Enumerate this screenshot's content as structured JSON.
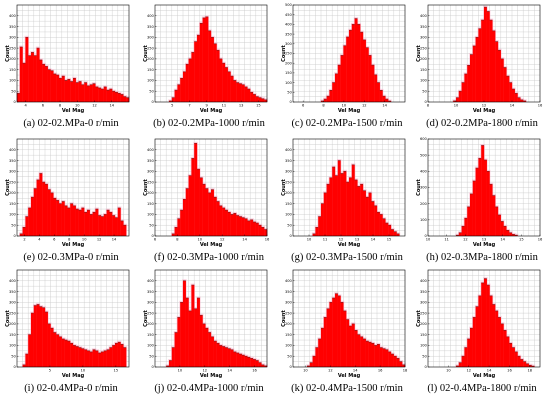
{
  "chart_data": [
    {
      "type": "bar",
      "caption": "(a) 02-02.MPa-0 r/min",
      "xlabel": "Vel Mag",
      "ylabel": "Count",
      "xlim": [
        3,
        16
      ],
      "ylim": [
        0,
        450
      ],
      "xticks": [
        4,
        6,
        8,
        10,
        12,
        14
      ],
      "yticks": [
        0,
        50,
        100,
        150,
        200,
        250,
        300,
        350,
        400
      ],
      "values": [
        40,
        255,
        180,
        300,
        215,
        230,
        215,
        250,
        195,
        175,
        165,
        150,
        145,
        130,
        125,
        110,
        120,
        100,
        105,
        95,
        110,
        90,
        95,
        80,
        90,
        75,
        80,
        85,
        70,
        65,
        60,
        70,
        55,
        60,
        50,
        45,
        40,
        35,
        25,
        20
      ]
    },
    {
      "type": "bar",
      "caption": "(b) 02-0.2MPa-1000 r/min",
      "xlabel": "Vel Mag",
      "ylabel": "Count",
      "xlim": [
        3,
        16
      ],
      "ylim": [
        0,
        450
      ],
      "xticks": [
        5,
        7,
        9,
        11,
        13,
        15
      ],
      "yticks": [
        0,
        50,
        100,
        150,
        200,
        250,
        300,
        350,
        400
      ],
      "values": [
        0,
        0,
        0,
        0,
        0,
        5,
        20,
        55,
        80,
        110,
        140,
        175,
        200,
        230,
        280,
        310,
        365,
        390,
        395,
        330,
        300,
        270,
        240,
        200,
        180,
        160,
        140,
        120,
        100,
        90,
        85,
        80,
        70,
        60,
        45,
        35,
        25,
        20,
        15,
        10
      ]
    },
    {
      "type": "bar",
      "caption": "(c) 02-0.2MPa-1500 r/min",
      "xlabel": "Vel Mag",
      "ylabel": "Count",
      "xlim": [
        5,
        16
      ],
      "ylim": [
        0,
        500
      ],
      "xticks": [
        6,
        8,
        10,
        12,
        14
      ],
      "yticks": [
        0,
        50,
        100,
        150,
        200,
        250,
        300,
        350,
        400,
        450,
        500
      ],
      "values": [
        0,
        0,
        0,
        0,
        0,
        0,
        0,
        0,
        0,
        0,
        5,
        15,
        30,
        60,
        100,
        145,
        190,
        240,
        290,
        335,
        370,
        400,
        430,
        400,
        360,
        320,
        280,
        240,
        190,
        140,
        100,
        60,
        30,
        15,
        5,
        0,
        0,
        0,
        0,
        0
      ]
    },
    {
      "type": "bar",
      "caption": "(d) 02-0.2MPa-1800 r/min",
      "xlabel": "Vel Mag",
      "ylabel": "Count",
      "xlim": [
        8,
        16
      ],
      "ylim": [
        0,
        450
      ],
      "xticks": [
        8,
        10,
        12,
        14,
        16
      ],
      "yticks": [
        0,
        50,
        100,
        150,
        200,
        250,
        300,
        350,
        400
      ],
      "values": [
        0,
        0,
        0,
        0,
        0,
        0,
        0,
        0,
        0,
        5,
        20,
        50,
        90,
        130,
        170,
        220,
        260,
        300,
        340,
        380,
        440,
        420,
        380,
        330,
        280,
        240,
        200,
        160,
        120,
        90,
        60,
        40,
        20,
        10,
        5,
        0,
        0,
        0,
        0,
        0
      ]
    },
    {
      "type": "bar",
      "caption": "(e) 02-0.3MPa-0 r/min",
      "xlabel": "Vel Mag",
      "ylabel": "Count",
      "xlim": [
        1,
        16
      ],
      "ylim": [
        0,
        450
      ],
      "xticks": [
        2,
        4,
        6,
        8,
        10,
        12,
        14
      ],
      "yticks": [
        0,
        50,
        100,
        150,
        200,
        250,
        300,
        350,
        400
      ],
      "values": [
        0,
        10,
        40,
        90,
        130,
        180,
        220,
        260,
        290,
        250,
        240,
        215,
        200,
        175,
        165,
        150,
        160,
        140,
        130,
        150,
        140,
        125,
        120,
        130,
        110,
        120,
        100,
        110,
        125,
        95,
        90,
        100,
        120,
        110,
        95,
        85,
        130,
        70,
        50,
        0
      ]
    },
    {
      "type": "bar",
      "caption": "(f) 02-0.3MPa-1000 r/min",
      "xlabel": "Vel Mag",
      "ylabel": "Count",
      "xlim": [
        6,
        16
      ],
      "ylim": [
        0,
        450
      ],
      "xticks": [
        6,
        8,
        10,
        12,
        14,
        16
      ],
      "yticks": [
        0,
        50,
        100,
        150,
        200,
        250,
        300,
        350,
        400
      ],
      "values": [
        0,
        0,
        0,
        0,
        0,
        0,
        10,
        40,
        80,
        120,
        170,
        220,
        280,
        360,
        430,
        310,
        270,
        240,
        220,
        200,
        215,
        180,
        160,
        140,
        130,
        120,
        110,
        100,
        105,
        95,
        90,
        85,
        80,
        70,
        75,
        65,
        60,
        50,
        40,
        30
      ]
    },
    {
      "type": "bar",
      "caption": "(g) 02-0.3MPa-1500 r/min",
      "xlabel": "Vel Mag",
      "ylabel": "Count",
      "xlim": [
        9,
        16
      ],
      "ylim": [
        0,
        450
      ],
      "xticks": [
        10,
        11,
        12,
        13,
        14,
        15
      ],
      "yticks": [
        0,
        50,
        100,
        150,
        200,
        250,
        300,
        350,
        400
      ],
      "values": [
        0,
        0,
        0,
        0,
        0,
        0,
        0,
        10,
        40,
        90,
        150,
        200,
        240,
        270,
        320,
        280,
        350,
        290,
        300,
        250,
        270,
        330,
        260,
        230,
        240,
        210,
        180,
        200,
        160,
        140,
        110,
        100,
        80,
        60,
        50,
        30,
        20,
        10,
        0,
        0
      ]
    },
    {
      "type": "bar",
      "caption": "(h) 02-0.3MPa-1800 r/min",
      "xlabel": "Vel Mag",
      "ylabel": "Count",
      "xlim": [
        10,
        16
      ],
      "ylim": [
        0,
        600
      ],
      "xticks": [
        10,
        11,
        12,
        13,
        14,
        15,
        16
      ],
      "yticks": [
        0,
        100,
        200,
        300,
        400,
        500,
        600
      ],
      "values": [
        0,
        0,
        0,
        0,
        0,
        0,
        0,
        0,
        0,
        0,
        5,
        20,
        60,
        110,
        180,
        260,
        340,
        420,
        480,
        560,
        470,
        400,
        320,
        250,
        180,
        130,
        90,
        60,
        35,
        20,
        10,
        5,
        0,
        0,
        0,
        0,
        0,
        0,
        0,
        0
      ]
    },
    {
      "type": "bar",
      "caption": "(i) 02-0.4MPa-0 r/min",
      "xlabel": "Vel Mag",
      "ylabel": "Count",
      "xlim": [
        0,
        17
      ],
      "ylim": [
        0,
        450
      ],
      "xticks": [
        5,
        10,
        15
      ],
      "yticks": [
        0,
        50,
        100,
        150,
        200,
        250,
        300,
        350,
        400
      ],
      "values": [
        0,
        0,
        10,
        60,
        150,
        250,
        285,
        290,
        280,
        275,
        255,
        200,
        180,
        160,
        150,
        140,
        130,
        125,
        120,
        110,
        100,
        95,
        90,
        85,
        80,
        75,
        70,
        80,
        75,
        65,
        70,
        75,
        80,
        90,
        100,
        110,
        115,
        105,
        90,
        0
      ]
    },
    {
      "type": "bar",
      "caption": "(j) 02-0.4MPa-1000 r/min",
      "xlabel": "Vel Mag",
      "ylabel": "Count",
      "xlim": [
        8,
        17
      ],
      "ylim": [
        0,
        450
      ],
      "xticks": [
        10,
        12,
        14,
        16
      ],
      "yticks": [
        0,
        50,
        100,
        150,
        200,
        250,
        300,
        350,
        400
      ],
      "values": [
        0,
        0,
        0,
        0,
        5,
        30,
        90,
        160,
        230,
        300,
        400,
        320,
        260,
        380,
        270,
        320,
        240,
        200,
        180,
        160,
        140,
        120,
        110,
        100,
        95,
        90,
        85,
        80,
        70,
        65,
        60,
        55,
        50,
        45,
        40,
        35,
        30,
        20,
        10,
        5
      ]
    },
    {
      "type": "bar",
      "caption": "(k) 02-0.4MPa-1500 r/min",
      "xlabel": "Vel Mag",
      "ylabel": "Count",
      "xlim": [
        9,
        18
      ],
      "ylim": [
        0,
        450
      ],
      "xticks": [
        10,
        12,
        14,
        16,
        18
      ],
      "yticks": [
        0,
        50,
        100,
        150,
        200,
        250,
        300,
        350,
        400
      ],
      "values": [
        0,
        0,
        0,
        0,
        0,
        5,
        20,
        50,
        90,
        130,
        180,
        230,
        270,
        300,
        320,
        340,
        330,
        300,
        260,
        220,
        190,
        200,
        170,
        150,
        140,
        130,
        120,
        115,
        110,
        100,
        105,
        90,
        85,
        80,
        70,
        60,
        50,
        40,
        25,
        10
      ]
    },
    {
      "type": "bar",
      "caption": "(l) 02-0.4MPa-1800 r/min",
      "xlabel": "Vel Mag",
      "ylabel": "Count",
      "xlim": [
        8,
        19
      ],
      "ylim": [
        0,
        450
      ],
      "xticks": [
        10,
        12,
        14,
        16,
        18
      ],
      "yticks": [
        0,
        50,
        100,
        150,
        200,
        250,
        300,
        350,
        400
      ],
      "values": [
        0,
        0,
        0,
        0,
        0,
        0,
        0,
        0,
        0,
        0,
        5,
        20,
        50,
        90,
        130,
        180,
        230,
        280,
        330,
        390,
        410,
        380,
        330,
        290,
        260,
        230,
        200,
        170,
        140,
        110,
        90,
        70,
        50,
        35,
        25,
        15,
        8,
        4,
        0,
        0
      ]
    }
  ]
}
